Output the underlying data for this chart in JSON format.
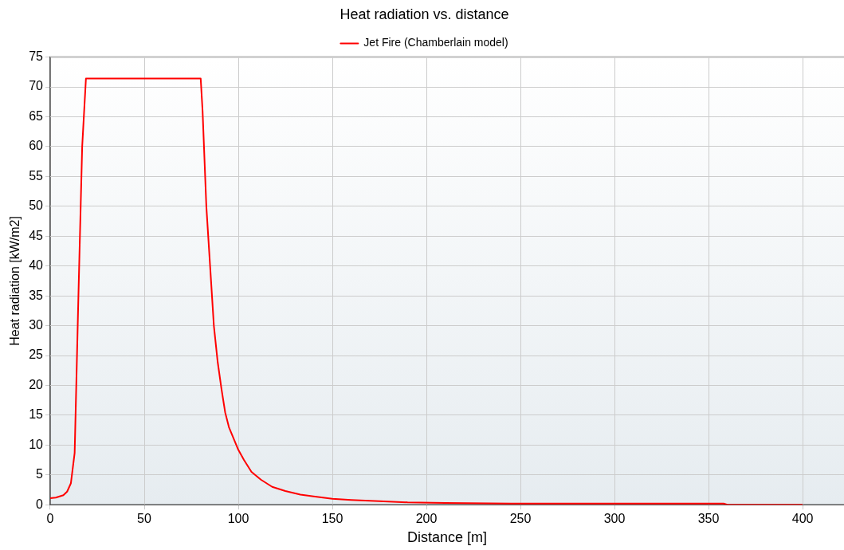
{
  "chart_data": {
    "type": "line",
    "title": "Heat radiation vs. distance",
    "xlabel": "Distance [m]",
    "ylabel": "Heat radiation [kW/m2]",
    "series": [
      {
        "name": "Jet Fire (Chamberlain model)",
        "color": "#ff0000",
        "x": [
          0,
          3,
          7,
          9,
          11,
          13,
          15,
          17,
          19,
          80,
          81,
          83,
          85,
          87,
          89,
          91,
          93,
          95,
          100,
          103,
          107,
          112,
          118,
          125,
          133,
          140,
          150,
          160,
          175,
          190,
          210,
          245,
          300,
          358,
          360,
          400
        ],
        "values": [
          1.1,
          1.2,
          1.6,
          2.2,
          3.6,
          8.7,
          35,
          60,
          71.4,
          71.4,
          66,
          50,
          40,
          30,
          24,
          19.5,
          15.5,
          13,
          9.2,
          7.5,
          5.5,
          4.2,
          3,
          2.3,
          1.7,
          1.4,
          1,
          0.8,
          0.6,
          0.4,
          0.3,
          0.2,
          0.2,
          0.2,
          0,
          0
        ]
      }
    ],
    "xlim": [
      0,
      422
    ],
    "xticks": [
      0,
      50,
      100,
      150,
      200,
      250,
      300,
      350,
      400
    ],
    "ylim": [
      0,
      75
    ],
    "yticks": [
      0,
      5,
      10,
      15,
      20,
      25,
      30,
      35,
      40,
      45,
      50,
      55,
      60,
      65,
      70,
      75
    ],
    "grid": true,
    "legend": "top",
    "marker": "none",
    "line_style": "solid"
  }
}
